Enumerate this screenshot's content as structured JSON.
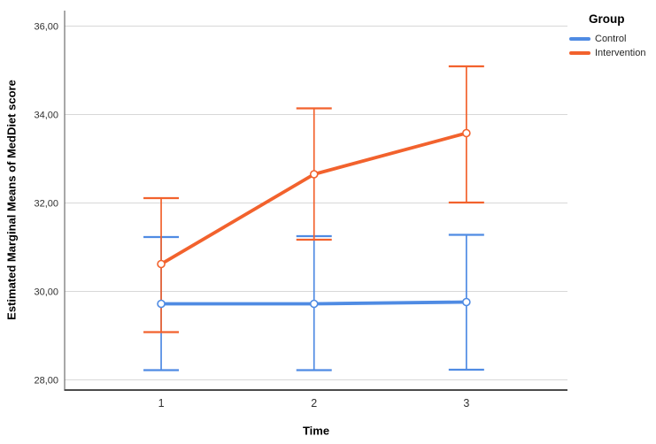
{
  "chart_data": {
    "type": "line",
    "title": "",
    "xlabel": "Time",
    "ylabel": "Estimated Marginal Means of MedDiet score",
    "legend_title": "Group",
    "legend_position": "top-right",
    "grid": "horizontal",
    "x": [
      1,
      2,
      3
    ],
    "xtick_labels": [
      "1",
      "2",
      "3"
    ],
    "yticks": [
      28,
      30,
      32,
      34,
      36
    ],
    "ytick_labels": [
      "28,00",
      "30,00",
      "32,00",
      "34,00",
      "36,00"
    ],
    "ylim": [
      27.77,
      36.35
    ],
    "error_bars": "95% confidence interval with caps",
    "marker": "open-circle",
    "series": [
      {
        "name": "Control",
        "color": "#4F8BE3",
        "means": [
          29.72,
          29.72,
          29.76
        ],
        "ci_lower": [
          28.22,
          28.22,
          28.23
        ],
        "ci_upper": [
          31.23,
          31.25,
          31.28
        ]
      },
      {
        "name": "Intervention",
        "color": "#F2622D",
        "means": [
          30.62,
          32.65,
          33.58
        ],
        "ci_lower": [
          29.08,
          31.17,
          32.01
        ],
        "ci_upper": [
          32.11,
          34.14,
          35.09
        ]
      }
    ],
    "axis_colors": {
      "gridline": "#D8D8D8",
      "y_axis_line": "#6F6F6F",
      "x_axis_line": "#4C4C4C",
      "tick_text": "#303030"
    }
  }
}
